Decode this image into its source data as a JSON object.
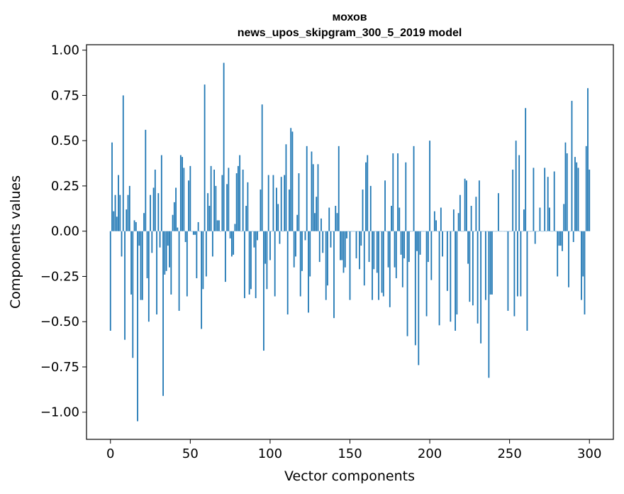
{
  "chart_data": {
    "type": "bar",
    "title_line1": "мохов",
    "title_line2": "news_upos_skipgram_300_5_2019 model",
    "xlabel": "Vector components",
    "ylabel": "Components values",
    "xlim": [
      -15,
      315
    ],
    "ylim": [
      -1.15,
      1.03
    ],
    "xticks": [
      0,
      50,
      100,
      150,
      200,
      250,
      300
    ],
    "xtick_labels": [
      "0",
      "50",
      "100",
      "150",
      "200",
      "250",
      "300"
    ],
    "yticks": [
      1.0,
      0.75,
      0.5,
      0.25,
      0.0,
      -0.25,
      -0.5,
      -0.75,
      -1.0
    ],
    "ytick_labels": [
      "1.00",
      "0.75",
      "0.50",
      "0.25",
      "0.00",
      "−0.25",
      "−0.50",
      "−0.75",
      "−1.00"
    ],
    "bar_color": "#1f77b4",
    "values": [
      -0.55,
      0.49,
      0.11,
      0.2,
      0.08,
      0.31,
      0.2,
      -0.14,
      0.75,
      -0.6,
      0.12,
      0.2,
      0.25,
      -0.35,
      -0.7,
      0.06,
      0.05,
      -1.05,
      -0.08,
      -0.38,
      -0.38,
      0.1,
      0.56,
      -0.26,
      -0.5,
      0.2,
      -0.12,
      0.24,
      0.34,
      -0.46,
      0.21,
      -0.09,
      0.42,
      -0.91,
      -0.24,
      -0.22,
      -0.08,
      -0.2,
      -0.35,
      0.09,
      0.16,
      0.24,
      0.02,
      -0.44,
      0.42,
      0.41,
      0.35,
      -0.06,
      -0.36,
      0.28,
      0.36,
      0.0,
      -0.02,
      -0.02,
      -0.26,
      0.05,
      0.0,
      -0.54,
      -0.32,
      0.81,
      -0.25,
      0.21,
      0.14,
      0.36,
      -0.14,
      0.34,
      0.25,
      0.06,
      0.06,
      0.0,
      0.31,
      0.93,
      -0.28,
      0.26,
      0.35,
      -0.04,
      -0.14,
      -0.13,
      0.04,
      0.32,
      0.36,
      0.42,
      0.0,
      0.34,
      -0.37,
      0.14,
      0.27,
      -0.35,
      -0.32,
      0.0,
      -0.09,
      -0.37,
      -0.05,
      0.0,
      0.23,
      0.7,
      -0.66,
      -0.18,
      -0.32,
      0.31,
      -0.16,
      0.0,
      0.31,
      -0.36,
      0.24,
      0.15,
      -0.07,
      0.3,
      0.0,
      0.31,
      0.48,
      -0.46,
      0.23,
      0.57,
      0.55,
      -0.2,
      -0.14,
      0.09,
      0.32,
      -0.36,
      -0.22,
      0.0,
      -0.05,
      0.47,
      -0.45,
      -0.25,
      0.44,
      0.37,
      0.1,
      0.19,
      0.37,
      -0.17,
      0.07,
      -0.12,
      0.0,
      -0.38,
      -0.3,
      0.13,
      -0.09,
      0.0,
      -0.48,
      0.14,
      0.1,
      0.47,
      -0.16,
      -0.16,
      -0.23,
      -0.2,
      -0.04,
      0.0,
      -0.38,
      0.0,
      0.0,
      0.0,
      -0.15,
      0.0,
      -0.21,
      -0.08,
      0.23,
      -0.3,
      0.38,
      0.42,
      -0.17,
      0.25,
      -0.38,
      -0.21,
      0.0,
      -0.23,
      -0.38,
      0.0,
      -0.34,
      -0.36,
      0.28,
      0.0,
      -0.2,
      -0.42,
      0.14,
      0.43,
      -0.2,
      -0.26,
      0.43,
      0.13,
      -0.13,
      -0.31,
      -0.15,
      0.38,
      -0.58,
      -0.17,
      0.0,
      0.0,
      0.47,
      -0.63,
      -0.11,
      -0.74,
      -0.13,
      0.0,
      0.0,
      0.0,
      -0.47,
      -0.17,
      0.5,
      -0.27,
      0.0,
      0.11,
      0.06,
      0.0,
      -0.52,
      0.13,
      -0.14,
      0.0,
      0.0,
      -0.33,
      0.0,
      -0.5,
      0.0,
      0.12,
      -0.55,
      -0.46,
      0.1,
      0.2,
      0.0,
      0.0,
      0.29,
      0.28,
      -0.18,
      -0.39,
      0.14,
      -0.41,
      0.0,
      0.19,
      -0.51,
      0.28,
      -0.62,
      0.0,
      0.0,
      -0.38,
      0.0,
      -0.81,
      -0.35,
      -0.35,
      0.0,
      0.0,
      0.0,
      0.21,
      0.0,
      0.0,
      0.0,
      0.0,
      0.0,
      -0.44,
      0.0,
      0.0,
      0.34,
      -0.47,
      0.5,
      -0.36,
      0.42,
      -0.36,
      0.0,
      0.12,
      0.68,
      -0.55,
      0.0,
      0.0,
      0.0,
      0.35,
      -0.07,
      0.0,
      0.0,
      0.13,
      0.0,
      0.0,
      0.35,
      0.0,
      0.3,
      0.13,
      0.0,
      0.0,
      0.33,
      0.0,
      -0.25,
      -0.08,
      -0.08,
      -0.11,
      0.15,
      0.49,
      0.43,
      -0.31,
      0.0,
      0.72,
      -0.06,
      0.41,
      0.38,
      0.35,
      0.0,
      -0.38,
      -0.25,
      -0.46,
      0.47,
      0.79,
      0.34
    ]
  }
}
